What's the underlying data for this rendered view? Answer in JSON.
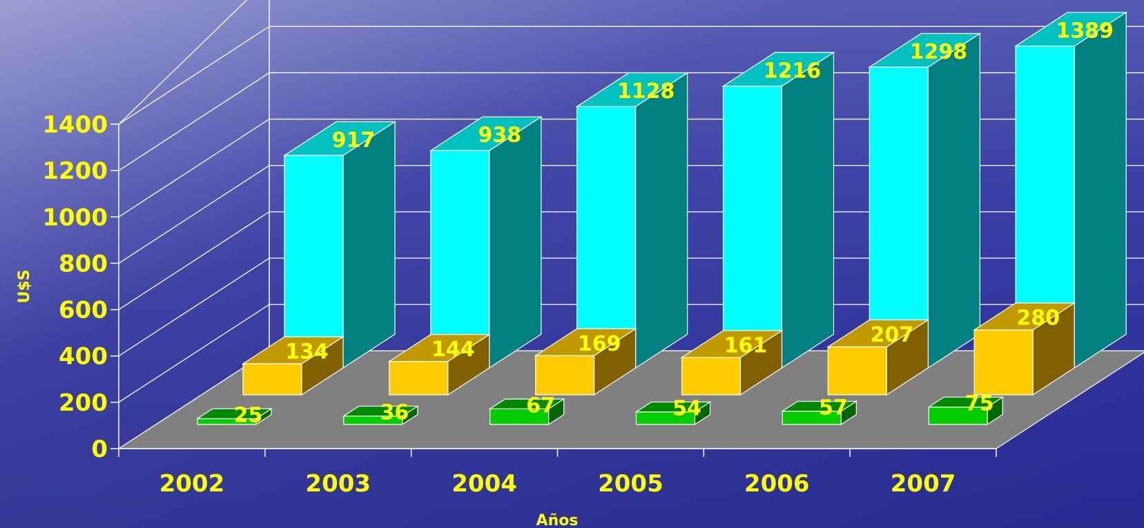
{
  "chart_data": {
    "type": "bar",
    "categories": [
      "2002",
      "2003",
      "2004",
      "2005",
      "2006",
      "2007"
    ],
    "series": [
      {
        "values": [
          917,
          938,
          1128,
          1216,
          1298,
          1389
        ],
        "color": "#00ffff",
        "side_color": "#008080",
        "top_color": "#00c0c0"
      },
      {
        "values": [
          134,
          144,
          169,
          161,
          207,
          280
        ],
        "color": "#ffcc00",
        "side_color": "#806000",
        "top_color": "#c09a00"
      },
      {
        "values": [
          25,
          36,
          67,
          54,
          57,
          75
        ],
        "color": "#00cc00",
        "side_color": "#006600",
        "top_color": "#008800"
      }
    ],
    "xlabel": "Años",
    "ylabel": "U$S",
    "ylim": [
      0,
      1400
    ],
    "yticks": [
      "0",
      "200",
      "400",
      "600",
      "800",
      "1000",
      "1200",
      "1400"
    ],
    "grid": true,
    "colors": {
      "floor": "#808080",
      "grid": "#ffffff",
      "text": "#ffff00"
    }
  }
}
